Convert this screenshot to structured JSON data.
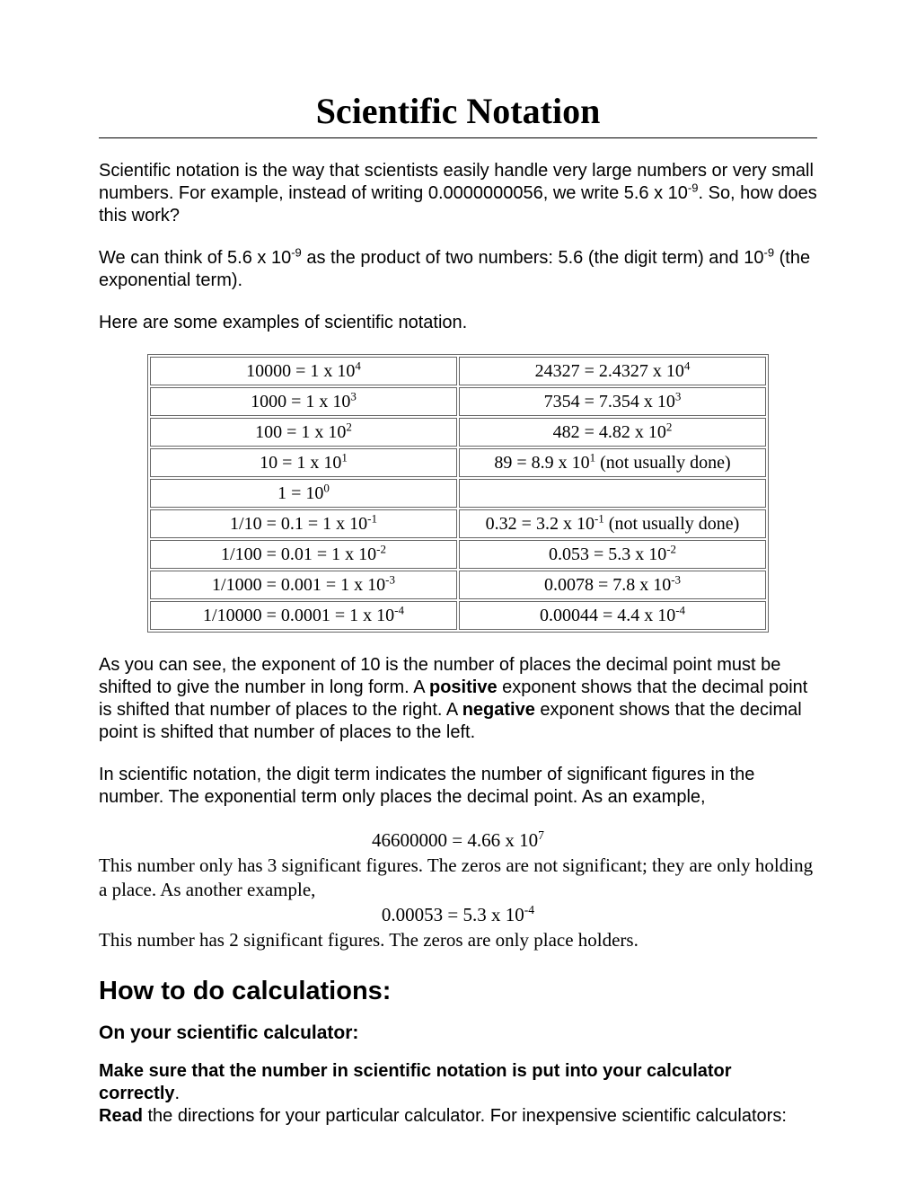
{
  "title": "Scientific Notation",
  "para1_pre": "Scientific notation is the way that scientists easily handle very large numbers or very small numbers. For example, instead of writing 0.0000000056, we write 5.6 x 10",
  "para1_sup": "-9",
  "para1_post": ". So, how does this work?",
  "para2_a": "We can think of 5.6 x 10",
  "para2_a_sup": "-9",
  "para2_b": " as the product of two numbers: 5.6 (the digit term) and 10",
  "para2_b_sup": "-9",
  "para2_c": " (the exponential term).",
  "para3": "Here are some examples of scientific notation.",
  "table": [
    {
      "left_base": "10000 = 1 x 10",
      "left_exp": "4",
      "right_base": "24327 = 2.4327 x 10",
      "right_exp": "4",
      "right_note": ""
    },
    {
      "left_base": "1000 = 1 x 10",
      "left_exp": "3",
      "right_base": "7354 = 7.354 x 10",
      "right_exp": "3",
      "right_note": ""
    },
    {
      "left_base": "100 = 1 x 10",
      "left_exp": "2",
      "right_base": "482 = 4.82 x 10",
      "right_exp": "2",
      "right_note": ""
    },
    {
      "left_base": "10 = 1 x 10",
      "left_exp": "1",
      "right_base": "89 = 8.9 x 10",
      "right_exp": "1",
      "right_note": " (not usually done)"
    },
    {
      "left_base": "1 = 10",
      "left_exp": "0",
      "right_base": "",
      "right_exp": "",
      "right_note": ""
    },
    {
      "left_base": "1/10 = 0.1 = 1 x 10",
      "left_exp": "-1",
      "right_base": "0.32 = 3.2 x 10",
      "right_exp": "-1",
      "right_note": " (not usually done)"
    },
    {
      "left_base": "1/100 = 0.01 = 1 x 10",
      "left_exp": "-2",
      "right_base": "0.053 = 5.3 x 10",
      "right_exp": "-2",
      "right_note": ""
    },
    {
      "left_base": "1/1000 = 0.001 = 1 x 10",
      "left_exp": "-3",
      "right_base": "0.0078 = 7.8 x 10",
      "right_exp": "-3",
      "right_note": ""
    },
    {
      "left_base": "1/10000 = 0.0001 = 1 x 10",
      "left_exp": "-4",
      "right_base": "0.00044 = 4.4 x 10",
      "right_exp": "-4",
      "right_note": ""
    }
  ],
  "para4_a": "As you can see, the exponent of 10 is the number of places the decimal point must be shifted to give the number in long form. A ",
  "para4_bold1": "positive",
  "para4_b": " exponent shows that the decimal point is shifted that number of places to the right. A ",
  "para4_bold2": "negative",
  "para4_c": " exponent shows that the decimal point is shifted that number of places to the left.",
  "para5": "In scientific notation, the digit term indicates the number of significant figures in the number. The exponential term only places the decimal point. As an example,",
  "ex1_base": "46600000 = 4.66 x 10",
  "ex1_exp": "7",
  "ex1_desc": "This number only has 3 significant figures. The zeros are not significant; they are only holding a place. As another example,",
  "ex2_base": "0.00053 = 5.3 x 10",
  "ex2_exp": "-4",
  "ex2_desc": "This number has 2 significant figures. The zeros are only place holders.",
  "h2": "How to do calculations:",
  "h3": "On your scientific calculator:",
  "para6_bold": "Make sure that the number in scientific notation is put into your calculator correctly",
  "para6_post": ".",
  "para7_bold": "Read",
  "para7_post": " the directions for your particular calculator. For inexpensive scientific calculators:"
}
